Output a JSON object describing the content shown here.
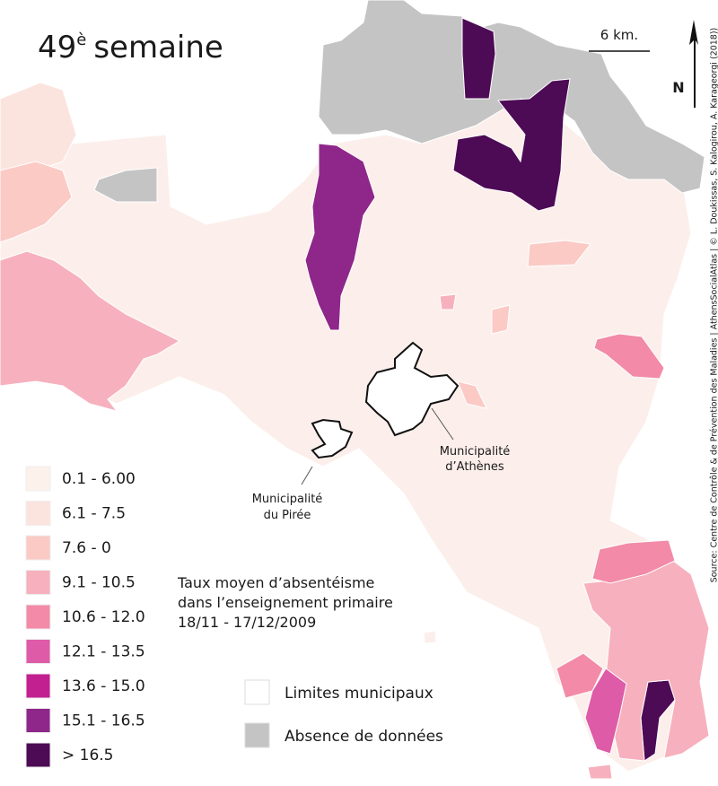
{
  "title": {
    "number": "49",
    "superscript": "è",
    "text": "semaine"
  },
  "scale_bar": "6 km.",
  "north": "N",
  "source": "Source: Centre de Contrôle & de Prévention des Maladies | AthensSocialAtlas | © L. Doukissas, S. Kalogirou, A. Karageorgi (2018))",
  "labels": {
    "athens": [
      "Municipalité",
      "d’Athènes"
    ],
    "piree": [
      "Municipalité",
      "du Pirée"
    ]
  },
  "legend_title": [
    "Taux moyen d’absentéisme",
    "dans l’enseignement primaire",
    "18/11 - 17/12/2009"
  ],
  "legend": [
    {
      "label": "0.1 - 6.00",
      "color": "#fdf1ec"
    },
    {
      "label": "6.1 - 7.5",
      "color": "#fce4de"
    },
    {
      "label": "7.6 - 0",
      "color": "#fbcac5"
    },
    {
      "label": "9.1 - 10.5",
      "color": "#f7b0bd"
    },
    {
      "label": "10.6 - 12.0",
      "color": "#f28aa8"
    },
    {
      "label": "12.1 - 13.5",
      "color": "#de5ba8"
    },
    {
      "label": "13.6 - 15.0",
      "color": "#c21f90"
    },
    {
      "label": "15.1 - 16.5",
      "color": "#8e2789"
    },
    {
      "label": "> 16.5",
      "color": "#4d0a55"
    }
  ],
  "legend_extra": [
    {
      "label": "Limites municipaux",
      "color": "#ffffff"
    },
    {
      "label": "Absence de données",
      "color": "#c4c4c4"
    }
  ]
}
